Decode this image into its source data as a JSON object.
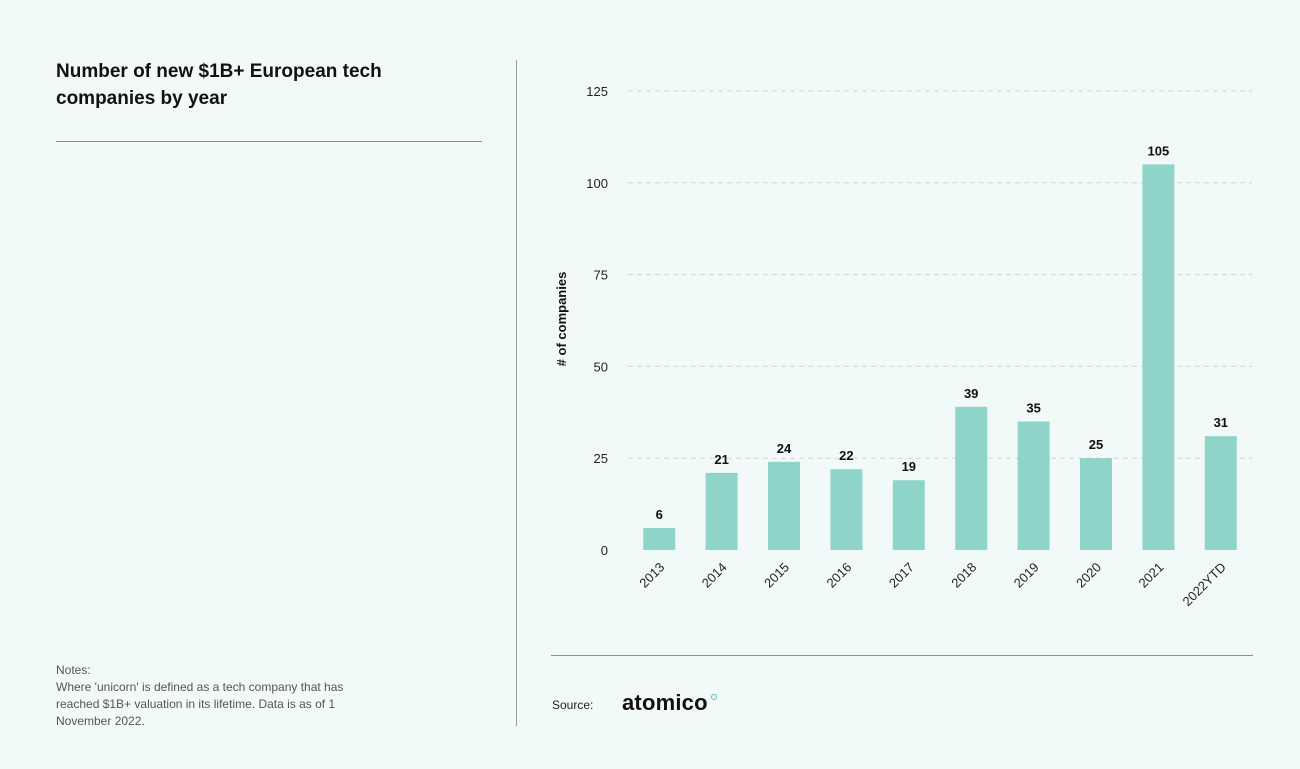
{
  "header": {
    "title": "Number of new $1B+ European tech companies by year"
  },
  "notes": {
    "label": "Notes:",
    "text": "Where 'unicorn' is defined as a tech company that has reached $1B+ valuation in its lifetime. Data is as of 1 November 2022."
  },
  "source": {
    "label": "Source:",
    "logo_text": "atomico"
  },
  "colors": {
    "bar": "#8fd4c8",
    "background": "#f2f9f9",
    "grid": "#cfd6d6",
    "logo_accent": "#5fbfaf"
  },
  "chart_data": {
    "type": "bar",
    "title": "Number of new $1B+ European tech companies by year",
    "xlabel": "",
    "ylabel": "# of companies",
    "categories": [
      "2013",
      "2014",
      "2015",
      "2016",
      "2017",
      "2018",
      "2019",
      "2020",
      "2021",
      "2022YTD"
    ],
    "values": [
      6,
      21,
      24,
      22,
      19,
      39,
      35,
      25,
      105,
      31
    ],
    "ylim": [
      0,
      125
    ],
    "yticks": [
      0,
      25,
      50,
      75,
      100,
      125
    ],
    "grid": true,
    "data_labels": true
  }
}
